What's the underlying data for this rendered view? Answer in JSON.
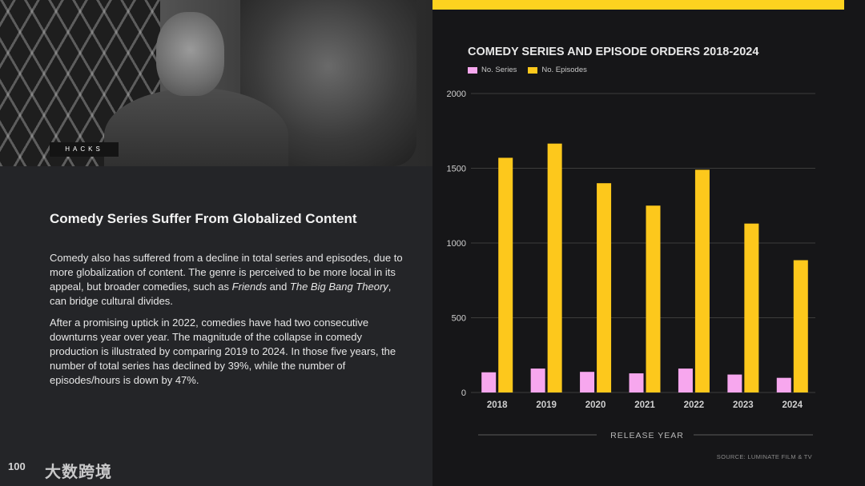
{
  "photo": {
    "tag": "HACKS"
  },
  "left": {
    "heading": "Comedy Series Suffer From Globalized Content",
    "para1": [
      {
        "t": "Comedy also has suffered from a decline in total series and episodes, due to more globalization of content. The genre is perceived to be more local in its appeal, but broader comedies, such as "
      },
      {
        "t": "Friends",
        "i": true
      },
      {
        "t": " and "
      },
      {
        "t": "The Big Bang Theory",
        "i": true
      },
      {
        "t": ", can bridge cultural divides."
      }
    ],
    "para2": "After a promising uptick in 2022, comedies have had two consecutive downturns year over year. The magnitude of the collapse in comedy production is illustrated by comparing 2019 to 2024. In those five years, the number of total series has declined by 39%, while the number of episodes/hours is down by 47%."
  },
  "watermark": {
    "logo": "100",
    "text": "大数跨境"
  },
  "colors": {
    "series": "#f7a7ee",
    "episodes": "#fdc81c",
    "accent": "#fdd21f",
    "grid": "#3c3c3c"
  },
  "chart_data": {
    "type": "bar",
    "title": "COMEDY SERIES AND EPISODE ORDERS 2018-2024",
    "xlabel": "RELEASE YEAR",
    "ylabel": "",
    "ylim": [
      0,
      2000
    ],
    "yticks": [
      0,
      500,
      1000,
      1500,
      2000
    ],
    "categories": [
      "2018",
      "2019",
      "2020",
      "2021",
      "2022",
      "2023",
      "2024"
    ],
    "series": [
      {
        "name": "No. Series",
        "values": [
          135,
          160,
          138,
          128,
          160,
          120,
          98
        ]
      },
      {
        "name": "No. Episodes",
        "values": [
          1570,
          1665,
          1400,
          1250,
          1490,
          1130,
          885
        ]
      }
    ],
    "legend": "top-left",
    "grid": true,
    "source": "SOURCE: LUMINATE FILM & TV"
  }
}
